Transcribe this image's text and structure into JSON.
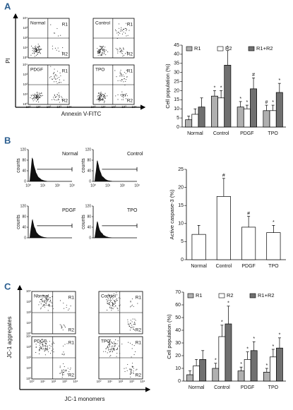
{
  "panel_labels": [
    "A",
    "B",
    "C"
  ],
  "flow_cytometry": [
    {
      "y_label": "PI",
      "x_label": "Annexin V-FITC",
      "samples": [
        "Normal",
        "Control",
        "PDGF",
        "TPO"
      ],
      "gates": [
        "R1",
        "R2"
      ],
      "ticks": [
        "10⁰",
        "10¹",
        "10²",
        "10³",
        "10⁴"
      ]
    },
    {
      "y_label": "JC-1 aggregates",
      "x_label": "JC-1 monomers",
      "samples": [
        "Normal",
        "Control",
        "PDGF",
        "TPO"
      ],
      "gates": [
        "R1",
        "R2"
      ],
      "ticks": [
        "10⁰",
        "10¹",
        "10²",
        "10³",
        "10⁴"
      ]
    }
  ],
  "histograms": {
    "y_label": "counts",
    "samples": [
      "Normal",
      "Control",
      "PDGF",
      "TPO"
    ],
    "ylim": [
      0,
      120
    ],
    "yticks": [
      0,
      40,
      80,
      120
    ],
    "xticks": [
      "10⁰",
      "10¹",
      "10²",
      "10³"
    ]
  },
  "chart_data": [
    {
      "type": "bar",
      "y_label": "Cell population (%)",
      "categories": [
        "Normal",
        "Control",
        "PDGF",
        "TPO"
      ],
      "series": [
        {
          "name": "R1",
          "color": "#b0b0b0",
          "values": [
            4,
            17,
            11,
            9
          ],
          "errors": [
            2,
            3,
            3,
            3
          ],
          "annotations": [
            null,
            "*",
            "*",
            "#"
          ]
        },
        {
          "name": "R2",
          "color": "#ffffff",
          "values": [
            7,
            16,
            10,
            9
          ],
          "errors": [
            3,
            4,
            2,
            3
          ],
          "annotations": [
            null,
            "*",
            "*",
            "*"
          ]
        },
        {
          "name": "R1+R2",
          "color": "#707070",
          "values": [
            11,
            34,
            21,
            19
          ],
          "errors": [
            5,
            8,
            6,
            5
          ],
          "annotations": [
            null,
            "*",
            "#",
            "*"
          ]
        }
      ],
      "ylim": [
        0,
        45
      ],
      "yticks": [
        0,
        5,
        10,
        15,
        20,
        25,
        30,
        35,
        40,
        45
      ]
    },
    {
      "type": "bar",
      "y_label": "Active caspase-3 (%)",
      "categories": [
        "Normal",
        "Control",
        "PDGF",
        "TPO"
      ],
      "color": "#ffffff",
      "values": [
        7,
        17.5,
        9,
        7.5
      ],
      "errors": [
        2.5,
        5,
        3,
        2
      ],
      "annotations": [
        null,
        "#",
        "#",
        "*"
      ],
      "ylim": [
        0,
        25
      ],
      "yticks": [
        0,
        5,
        10,
        15,
        20,
        25
      ]
    },
    {
      "type": "bar",
      "y_label": "Cell population (%)",
      "categories": [
        "Normal",
        "Control",
        "PDGF",
        "TPO"
      ],
      "series": [
        {
          "name": "R1",
          "color": "#b0b0b0",
          "values": [
            5,
            10,
            8,
            7
          ],
          "errors": [
            3,
            4,
            3,
            3
          ],
          "annotations": [
            null,
            "*",
            "*",
            "*"
          ]
        },
        {
          "name": "R2",
          "color": "#ffffff",
          "values": [
            12,
            35,
            17,
            19
          ],
          "errors": [
            5,
            9,
            6,
            6
          ],
          "annotations": [
            null,
            "*",
            "*",
            "*"
          ]
        },
        {
          "name": "R1+R2",
          "color": "#707070",
          "values": [
            17,
            45,
            24,
            26
          ],
          "errors": [
            7,
            14,
            7,
            8
          ],
          "annotations": [
            null,
            "*",
            "*",
            "*"
          ]
        }
      ],
      "ylim": [
        0,
        70
      ],
      "yticks": [
        0,
        10,
        20,
        30,
        40,
        50,
        60,
        70
      ]
    }
  ]
}
